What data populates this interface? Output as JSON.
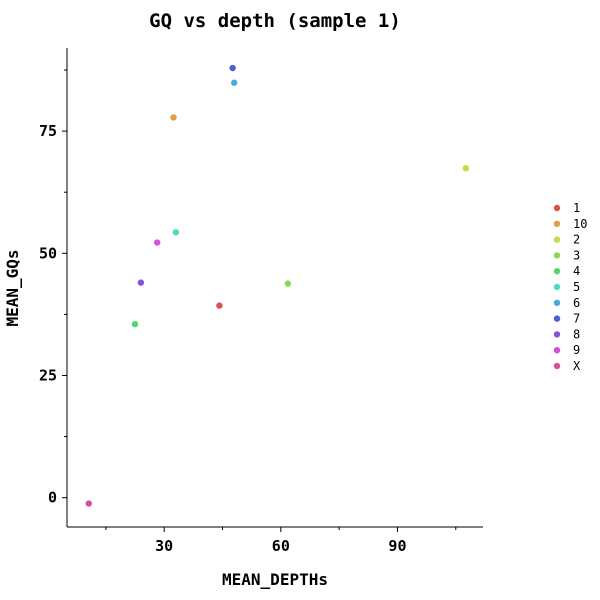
{
  "chart_data": {
    "type": "scatter",
    "title": "GQ vs depth (sample 1)",
    "xlabel": "MEAN_DEPTHs",
    "ylabel": "MEAN_GQs",
    "xlim": [
      5,
      112
    ],
    "ylim": [
      -6,
      92
    ],
    "xticks": [
      30,
      60,
      90
    ],
    "yticks": [
      0,
      25,
      50,
      75
    ],
    "grid": false,
    "legend_position": "right",
    "series": [
      {
        "name": "1",
        "color": "#d9534f",
        "x": [
          44.2
        ],
        "y": [
          39.3
        ]
      },
      {
        "name": "10",
        "color": "#e0a040",
        "x": [
          32.4
        ],
        "y": [
          77.8
        ]
      },
      {
        "name": "2",
        "color": "#c8d945",
        "x": [
          107.6
        ],
        "y": [
          67.4
        ]
      },
      {
        "name": "3",
        "color": "#8cd94a",
        "x": [
          61.8
        ],
        "y": [
          43.8
        ]
      },
      {
        "name": "4",
        "color": "#4fd96b",
        "x": [
          22.5
        ],
        "y": [
          35.5
        ]
      },
      {
        "name": "5",
        "color": "#4fd9c4",
        "x": [
          33.0
        ],
        "y": [
          54.3
        ]
      },
      {
        "name": "6",
        "color": "#4aa8d9",
        "x": [
          48.0
        ],
        "y": [
          84.9
        ]
      },
      {
        "name": "7",
        "color": "#4b5fd6",
        "x": [
          47.6
        ],
        "y": [
          87.9
        ]
      },
      {
        "name": "8",
        "color": "#8a4fd9",
        "x": [
          24.0
        ],
        "y": [
          44.0
        ]
      },
      {
        "name": "9",
        "color": "#d94fd9",
        "x": [
          28.2
        ],
        "y": [
          52.2
        ]
      },
      {
        "name": "X",
        "color": "#d94f95",
        "x": [
          10.6
        ],
        "y": [
          -1.2
        ]
      }
    ]
  }
}
